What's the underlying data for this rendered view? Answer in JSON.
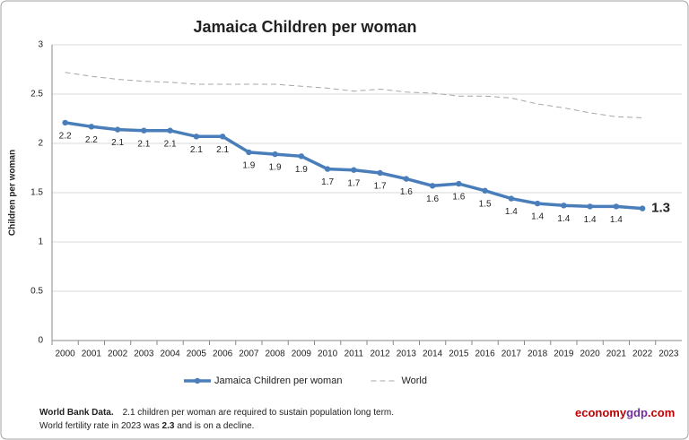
{
  "chart_data": {
    "type": "line",
    "title": "Jamaica Children per woman",
    "y_label": "Children per woman",
    "categories": [
      "2000",
      "2001",
      "2002",
      "2003",
      "2004",
      "2005",
      "2006",
      "2007",
      "2008",
      "2009",
      "2010",
      "2011",
      "2012",
      "2013",
      "2014",
      "2015",
      "2016",
      "2017",
      "2018",
      "2019",
      "2020",
      "2021",
      "2022",
      "2023"
    ],
    "series": [
      {
        "name": "Jamaica Children per woman",
        "color": "#4a7ebb",
        "values": [
          2.21,
          2.17,
          2.14,
          2.13,
          2.13,
          2.07,
          2.07,
          1.91,
          1.89,
          1.87,
          1.74,
          1.73,
          1.7,
          1.64,
          1.57,
          1.59,
          1.52,
          1.44,
          1.39,
          1.37,
          1.36,
          1.36,
          1.34,
          null
        ],
        "value_labels": [
          "2.2",
          "2.2",
          "2.1",
          "2.1",
          "2.1",
          "2.1",
          "2.1",
          "1.9",
          "1.9",
          "1.9",
          "1.7",
          "1.7",
          "1.7",
          "1.6",
          "1.6",
          "1.6",
          "1.5",
          "1.4",
          "1.4",
          "1.4",
          "1.4",
          "1.4",
          "1.3",
          null
        ]
      },
      {
        "name": "World",
        "color": "#a6a6a6",
        "values": [
          2.72,
          2.68,
          2.65,
          2.63,
          2.62,
          2.6,
          2.6,
          2.6,
          2.6,
          2.58,
          2.56,
          2.53,
          2.55,
          2.52,
          2.51,
          2.48,
          2.48,
          2.46,
          2.4,
          2.36,
          2.31,
          2.27,
          2.26,
          null
        ]
      }
    ],
    "ylim": [
      0,
      3
    ],
    "yticks": [
      0,
      0.5,
      1,
      1.5,
      2,
      2.5,
      3
    ],
    "grid": true,
    "legend": "bottom",
    "footnote": {
      "source": "World Bank Data.",
      "line1": "2.1 children per woman are required to sustain population long term.",
      "line2": [
        "World fertility rate in 2023 was ",
        "2.3",
        " and is on a decline."
      ]
    },
    "brand": [
      "economy",
      "gdp",
      ".com"
    ]
  }
}
